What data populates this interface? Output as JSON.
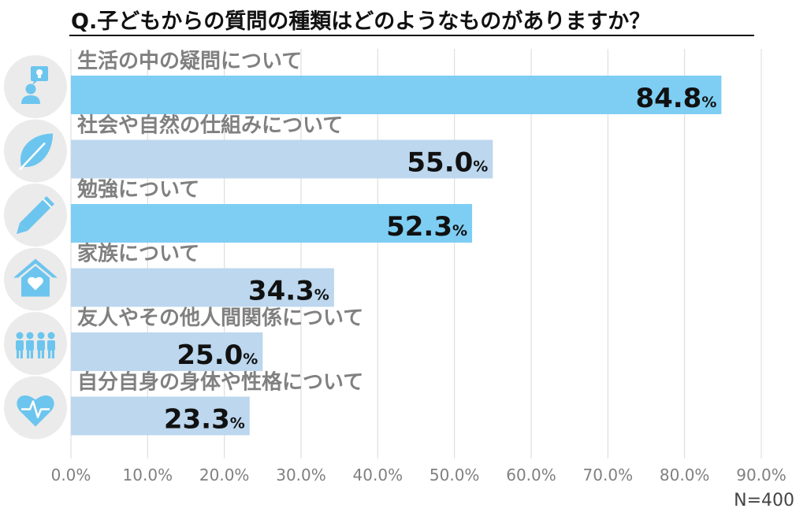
{
  "chart_data": {
    "type": "bar",
    "orientation": "horizontal",
    "title": "Q.子どもからの質問の種類はどのようなものがありますか？",
    "categories": [
      "生活の中の疑問について",
      "社会や自然の仕組みについて",
      "勉強について",
      "家族について",
      "友人やその他人間関係について",
      "自分自身の身体や性格について"
    ],
    "values": [
      84.8,
      55.0,
      52.3,
      34.3,
      25.0,
      23.3
    ],
    "value_labels": [
      "84.8",
      "55.0",
      "52.3",
      "34.3",
      "25.0",
      "23.3"
    ],
    "value_unit": "%",
    "icons": [
      "person-idea-icon",
      "leaf-icon",
      "pencil-icon",
      "house-heart-icon",
      "people-group-icon",
      "heart-pulse-icon"
    ],
    "xlim": [
      0,
      90
    ],
    "xticks": [
      0,
      10,
      20,
      30,
      40,
      50,
      60,
      70,
      80,
      90
    ],
    "xtick_labels": [
      "0.0%",
      "10.0%",
      "20.0%",
      "30.0%",
      "40.0%",
      "50.0%",
      "60.0%",
      "70.0%",
      "80.0%",
      "90.0%"
    ],
    "grid": true,
    "note": "N=400",
    "colors": {
      "bar_highlight": "#7ecef4",
      "bar_normal": "#bcd7ee",
      "icon": "#6cc5ee",
      "icon_bg": "#ebebeb",
      "grid": "#d9d9d9",
      "label": "#808080"
    },
    "highlight_indices": [
      0,
      2
    ]
  }
}
